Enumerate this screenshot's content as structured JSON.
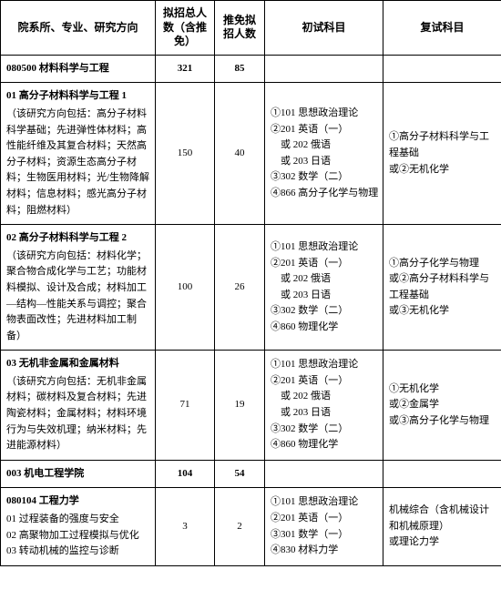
{
  "headers": {
    "dept": "院系所、专业、研究方向",
    "total": "拟招总人数（含推免）",
    "rec": "推免拟招人数",
    "exam1": "初试科目",
    "exam2": "复试科目"
  },
  "rows": [
    {
      "type": "section",
      "dept": "080500 材料科学与工程",
      "total": "321",
      "rec": "85",
      "exam1": "",
      "exam2": ""
    },
    {
      "type": "data",
      "title": "01 高分子材料科学与工程 1",
      "detail": "（该研究方向包括：高分子材料科学基础；先进弹性体材料；高性能纤维及其复合材料；天然高分子材料；资源生态高分子材料；生物医用材料；光/生物降解材料；信息材料；感光高分子材料；阻燃材料）",
      "total": "150",
      "rec": "40",
      "exam1_lines": [
        "①101 思想政治理论",
        "②201 英语（一）",
        "　或 202 俄语",
        "　或 203 日语",
        "③302 数学（二）",
        "④866  高分子化学与物理"
      ],
      "exam2_lines": [
        "①高分子材料科学与工程基础",
        "或②无机化学"
      ]
    },
    {
      "type": "data",
      "title": "02 高分子材料科学与工程 2",
      "detail": "（该研究方向包括：材料化学；聚合物合成化学与工艺；功能材料模拟、设计及合成；材料加工—结构—性能关系与调控；聚合物表面改性；先进材料加工制备）",
      "total": "100",
      "rec": "26",
      "exam1_lines": [
        "①101 思想政治理论",
        "②201 英语（一）",
        "　或 202 俄语",
        "　或 203 日语",
        "③302 数学（二）",
        "④860 物理化学"
      ],
      "exam2_lines": [
        "①高分子化学与物理",
        "或②高分子材料科学与工程基础",
        "或③无机化学"
      ]
    },
    {
      "type": "data",
      "title": "03 无机非金属和金属材料",
      "detail": "（该研究方向包括：无机非金属材料；碳材料及复合材料；先进陶瓷材料；金属材料；材料环境行为与失效机理；纳米材料；先进能源材料）",
      "total": "71",
      "rec": "19",
      "exam1_lines": [
        "①101 思想政治理论",
        "②201 英语（一）",
        "　或 202 俄语",
        "　或 203 日语",
        "③302 数学（二）",
        "④860 物理化学"
      ],
      "exam2_lines": [
        "①无机化学",
        "或②金属学",
        "或③高分子化学与物理"
      ]
    },
    {
      "type": "section",
      "dept": "003 机电工程学院",
      "total": "104",
      "rec": "54",
      "exam1": "",
      "exam2": ""
    },
    {
      "type": "data",
      "title": "080104 工程力学",
      "sublines": [
        "01 过程装备的强度与安全",
        "02 高聚物加工过程模拟与优化",
        "03 转动机械的监控与诊断"
      ],
      "total": "3",
      "rec": "2",
      "exam1_lines": [
        "①101 思想政治理论",
        "②201 英语（一）",
        "③301 数学（一）",
        "④830 材料力学"
      ],
      "exam2_lines": [
        "机械综合（含机械设计和机械原理）",
        "或理论力学"
      ]
    }
  ]
}
